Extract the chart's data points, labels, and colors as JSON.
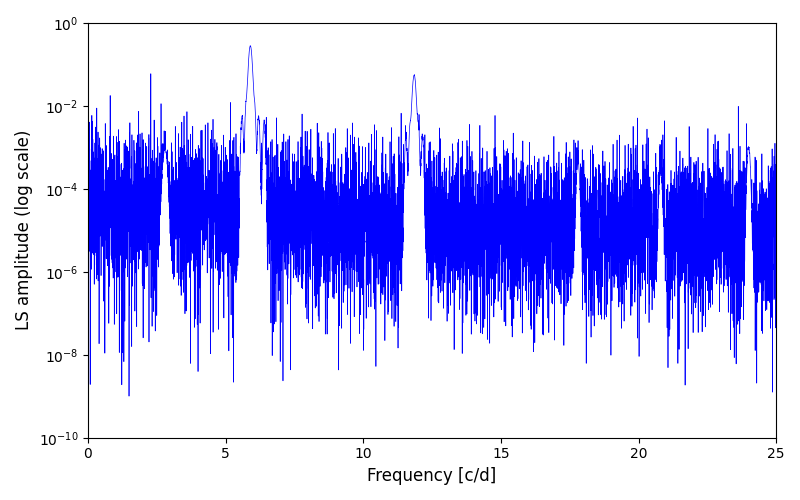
{
  "title": "",
  "xlabel": "Frequency [c/d]",
  "ylabel": "LS amplitude (log scale)",
  "xlim": [
    0,
    25
  ],
  "ylim": [
    1e-10,
    1.0
  ],
  "line_color": "#0000ff",
  "line_width": 0.5,
  "freq_max": 25,
  "n_points": 8000,
  "peak1_freq": 5.9,
  "peak1_amp": 0.28,
  "peak2_freq": 11.85,
  "peak2_amp": 0.055,
  "peak3_freq": 2.8,
  "peak3_amp": 0.0009,
  "peak4_freq": 17.8,
  "peak4_amp": 0.00045,
  "peak5_freq": 20.8,
  "peak5_amp": 0.00025,
  "peak6_freq": 24.0,
  "peak6_amp": 0.001,
  "noise_floor_log": -5.0,
  "noise_sigma": 0.9,
  "background_color": "#ffffff"
}
